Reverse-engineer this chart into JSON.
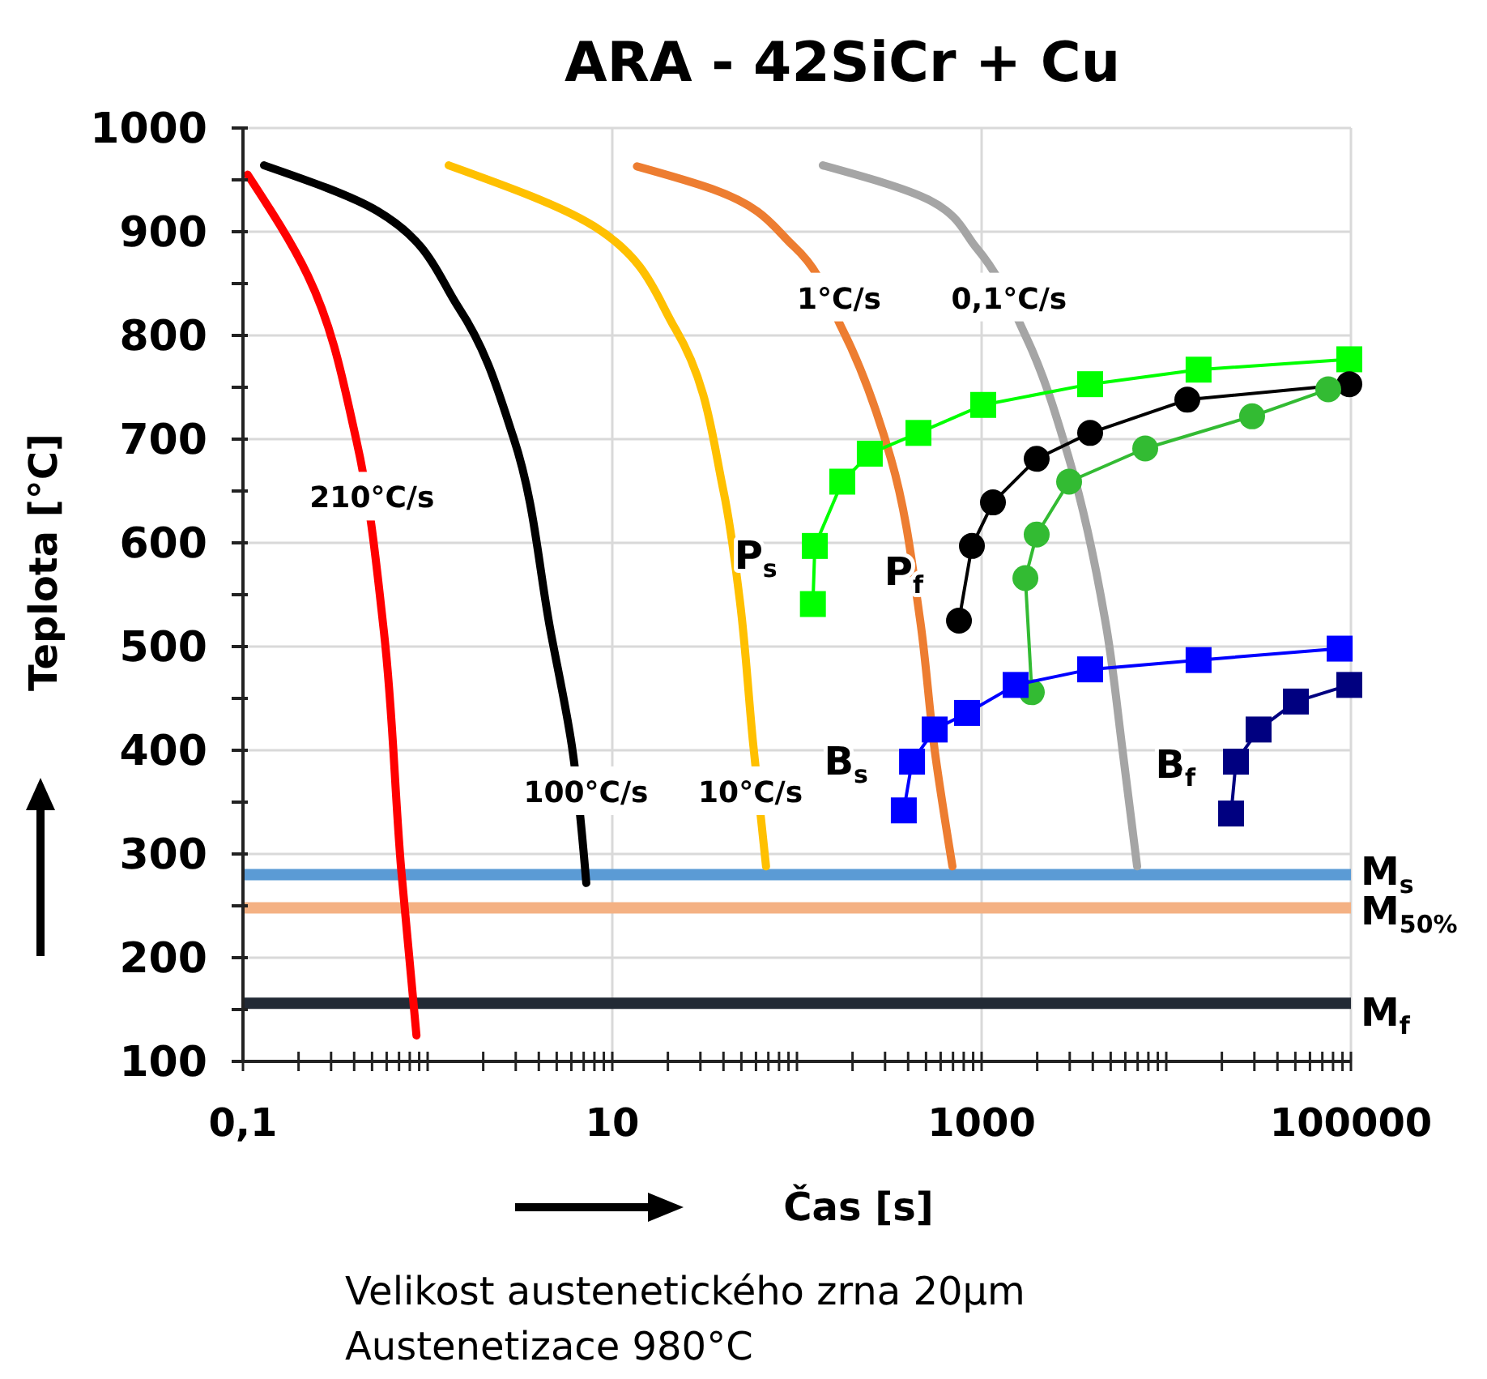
{
  "chart_data": {
    "type": "line",
    "title": "ARA - 42SiCr + Cu",
    "xlabel": "Čas [s]",
    "ylabel": "Teplota [°C]",
    "log": "x",
    "grid": true,
    "xlim": [
      0.1,
      100000
    ],
    "ylim": [
      100,
      1000
    ],
    "xticks": [
      {
        "value": 0.1,
        "label": "0,1"
      },
      {
        "value": 0.2,
        "label": null
      },
      {
        "value": 0.3,
        "label": null
      },
      {
        "value": 0.4,
        "label": null
      },
      {
        "value": 0.5,
        "label": null
      },
      {
        "value": 0.6,
        "label": null
      },
      {
        "value": 0.7,
        "label": null
      },
      {
        "value": 0.8,
        "label": null
      },
      {
        "value": 0.9,
        "label": null
      },
      {
        "value": 1,
        "label": null
      },
      {
        "value": 2,
        "label": null
      },
      {
        "value": 3,
        "label": null
      },
      {
        "value": 4,
        "label": null
      },
      {
        "value": 5,
        "label": null
      },
      {
        "value": 6,
        "label": null
      },
      {
        "value": 7,
        "label": null
      },
      {
        "value": 8,
        "label": null
      },
      {
        "value": 9,
        "label": null
      },
      10,
      {
        "value": 20,
        "label": null
      },
      {
        "value": 30,
        "label": null
      },
      {
        "value": 40,
        "label": null
      },
      {
        "value": 50,
        "label": null
      },
      {
        "value": 60,
        "label": null
      },
      {
        "value": 70,
        "label": null
      },
      {
        "value": 80,
        "label": null
      },
      {
        "value": 90,
        "label": null
      },
      {
        "value": 100,
        "label": null
      },
      {
        "value": 200,
        "label": null
      },
      {
        "value": 300,
        "label": null
      },
      {
        "value": 400,
        "label": null
      },
      {
        "value": 500,
        "label": null
      },
      {
        "value": 600,
        "label": null
      },
      {
        "value": 700,
        "label": null
      },
      {
        "value": 800,
        "label": null
      },
      {
        "value": 900,
        "label": null
      },
      1000,
      {
        "value": 2000,
        "label": null
      },
      {
        "value": 3000,
        "label": null
      },
      {
        "value": 4000,
        "label": null
      },
      {
        "value": 5000,
        "label": null
      },
      {
        "value": 6000,
        "label": null
      },
      {
        "value": 7000,
        "label": null
      },
      {
        "value": 8000,
        "label": null
      },
      {
        "value": 9000,
        "label": null
      },
      {
        "value": 10000,
        "label": null
      },
      {
        "value": 20000,
        "label": null
      },
      {
        "value": 30000,
        "label": null
      },
      {
        "value": 40000,
        "label": null
      },
      {
        "value": 50000,
        "label": null
      },
      {
        "value": 60000,
        "label": null
      },
      {
        "value": 70000,
        "label": null
      },
      {
        "value": 80000,
        "label": null
      },
      {
        "value": 90000,
        "label": null
      },
      100000
    ],
    "yticks": [
      100,
      {
        "value": 150,
        "label": null
      },
      200,
      {
        "value": 250,
        "label": null
      },
      300,
      {
        "value": 350,
        "label": null
      },
      400,
      {
        "value": 450,
        "label": null
      },
      500,
      {
        "value": 550,
        "label": null
      },
      600,
      {
        "value": 650,
        "label": null
      },
      700,
      {
        "value": 750,
        "label": null
      },
      800,
      {
        "value": 850,
        "label": null
      },
      900,
      {
        "value": 950,
        "label": null
      },
      1000
    ],
    "series": [
      {
        "color": "#ff0000",
        "x": [
          0.106,
          0.224,
          0.41,
          0.58,
          0.72,
          0.87
        ],
        "values": [
          955,
          858,
          700,
          514,
          284,
          125
        ]
      },
      {
        "color": "#000000",
        "x": [
          0.13,
          0.534,
          1.47,
          2.91,
          4.64,
          6.03,
          7.23
        ],
        "values": [
          964,
          920,
          827,
          702,
          514,
          405,
          272
        ]
      },
      {
        "color": "#ffc000",
        "x": [
          1.3,
          8,
          22,
          40,
          49,
          58,
          68
        ],
        "values": [
          964,
          905,
          806,
          650,
          545,
          405,
          288
        ]
      },
      {
        "color": "#ed7d31",
        "x": [
          13.6,
          35,
          96,
          176,
          323,
          465,
          557,
          695
        ],
        "values": [
          963,
          941,
          886,
          806,
          681,
          525,
          400,
          288
        ]
      },
      {
        "color": "#a5a5a5",
        "x": [
          138,
          514,
          942,
          1726,
          2977,
          4733,
          5797,
          6953
        ],
        "values": [
          964,
          931,
          884,
          800,
          681,
          519,
          400,
          288
        ]
      },
      {
        "name": "P$_{s}$",
        "marker": "square",
        "color": "#00ff00",
        "x": [
          122,
          125,
          176,
          248,
          455,
          1020,
          3870,
          14960,
          98000
        ],
        "values": [
          541,
          597,
          659,
          686,
          706,
          733,
          753,
          767,
          777
        ]
      },
      {
        "name": "P$_{f}$",
        "marker": "circle",
        "color": "#000000",
        "x": [
          754,
          886,
          1152,
          1987,
          3870,
          13000,
          98000
        ],
        "values": [
          525,
          597,
          639,
          681,
          706,
          738,
          753
        ]
      },
      {
        "marker": "circle",
        "color": "#33bb33",
        "x": [
          1870,
          1726,
          1987,
          2977,
          7690,
          29160,
          75380
        ],
        "values": [
          456,
          566,
          608,
          659,
          691,
          722,
          748
        ]
      },
      {
        "name": "B$_{s}$",
        "marker": "square",
        "color": "#0000ff",
        "x": [
          379,
          420,
          557,
          834,
          1528,
          3870,
          14960,
          86890
        ],
        "values": [
          342,
          389,
          420,
          436,
          463,
          478,
          487,
          498
        ]
      },
      {
        "name": "B$_{f}$",
        "marker": "square",
        "color": "#000080",
        "x": [
          22440,
          23840,
          31620,
          50340,
          98000
        ],
        "values": [
          339,
          389,
          420,
          447,
          463
        ]
      }
    ],
    "ref_lines": [
      {
        "axis": "y",
        "value": 280,
        "label": "M$_{s}$",
        "color": "#5b9bd5"
      },
      {
        "axis": "y",
        "value": 248,
        "label": "M$_{50%}$",
        "color": "#f4b183"
      },
      {
        "axis": "y",
        "value": 156,
        "label": "M$_{f}$",
        "color": "#222a35"
      }
    ],
    "annotations": [
      {
        "text": "210°C/s",
        "x": 0.5,
        "y": 645
      },
      {
        "text": "100°C/s",
        "x": 7.2,
        "y": 361
      },
      {
        "text": "10°C/s",
        "x": 56,
        "y": 361
      },
      {
        "text": "1°C/s",
        "x": 169,
        "y": 837
      },
      {
        "text": "0,1°C/s",
        "x": 1409,
        "y": 837
      },
      "Velikost austenetického zrna 20µm",
      "Austenetizace 980°C"
    ]
  }
}
